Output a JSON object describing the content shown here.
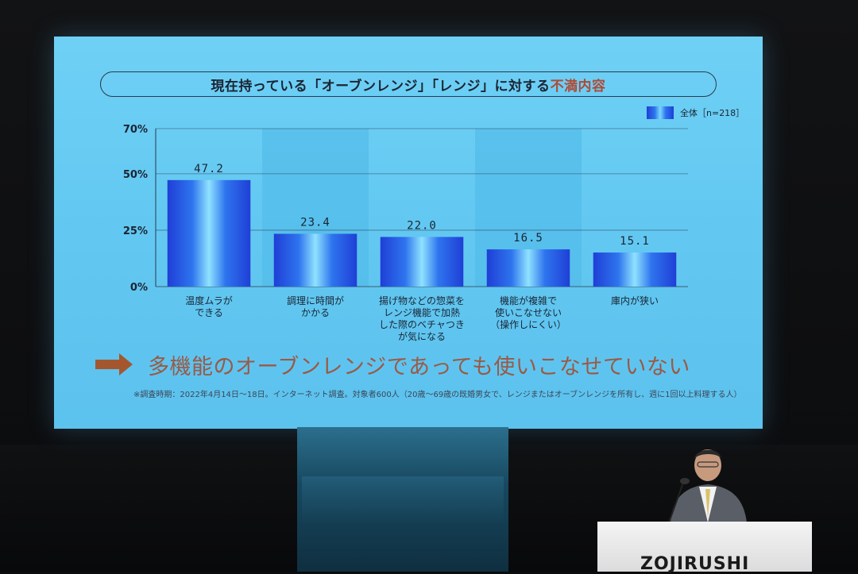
{
  "slide": {
    "title_main": "現在持っている「オーブンレンジ」「レンジ」に対する",
    "title_accent": "不満内容",
    "legend": "全体［n=218］",
    "conclusion": "多機能のオーブンレンジであっても使いこなせていない",
    "footnote": "※調査時期：2022年4月14日〜18日。インターネット調査。対象者600人（20歳〜69歳の既婚男女で、レンジまたはオーブンレンジを所有し、週に1回以上料理する人）"
  },
  "podium": {
    "logo": "ZOJIRUSHI"
  },
  "colors": {
    "screen": "#62c8f1",
    "bar_dark": "#1f3fd6",
    "bar_light": "#7ad8ff",
    "accent_text": "#b04a36",
    "conclusion_text": "#9a5a46",
    "arrow": "#a4572f"
  },
  "chart_data": {
    "type": "bar",
    "categories": [
      [
        "温度ムラが",
        "できる"
      ],
      [
        "調理に時間が",
        "かかる"
      ],
      [
        "揚げ物などの惣菜を",
        "レンジ機能で加熱",
        "した際のベチャつき",
        "が気になる"
      ],
      [
        "機能が複雑で",
        "使いこなせない",
        "（操作しにくい）"
      ],
      [
        "庫内が狭い"
      ]
    ],
    "values": [
      47.2,
      23.4,
      22.0,
      16.5,
      15.1
    ],
    "value_labels": [
      "47.2",
      "23.4",
      "22.0",
      "16.5",
      "15.1"
    ],
    "y_ticks": [
      0,
      25,
      50,
      70
    ],
    "y_tick_labels": [
      "0%",
      "25%",
      "50%",
      "70%"
    ],
    "ylim": [
      0,
      70
    ],
    "legend_position": "top-right"
  }
}
